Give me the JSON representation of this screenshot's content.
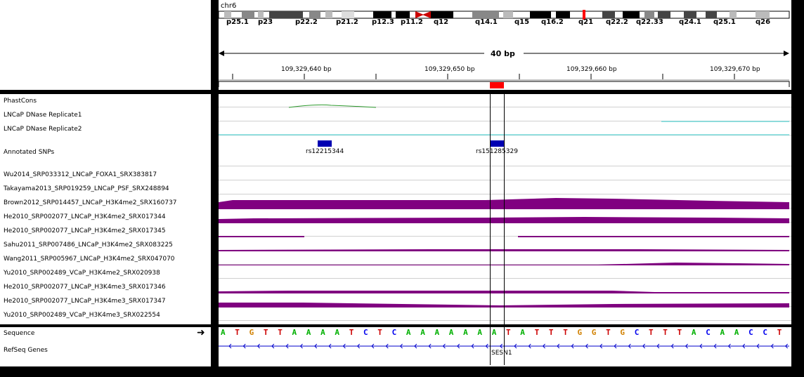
{
  "colors": {
    "sig": "#800080",
    "sigDark": "#7a0a7a",
    "snp": "#0000b2",
    "phastcons": "#2e9a2e",
    "dnase": "#33cccc",
    "roi": "#ff0000"
  },
  "ideogram": {
    "chromosome": "chr6",
    "bands": [
      "p25.1",
      "p23",
      "p22.2",
      "p21.2",
      "p12.3",
      "p11.2",
      "q12",
      "q14.1",
      "q15",
      "q16.2",
      "q21",
      "q22.2",
      "q22.33",
      "q24.1",
      "q25.1",
      "q26"
    ]
  },
  "ruler": {
    "span": "40 bp",
    "ticks": [
      "109,329,640 bp",
      "109,329,650 bp",
      "109,329,660 bp",
      "109,329,670 bp"
    ]
  },
  "tracks": [
    {
      "label": "PhastCons",
      "kind": "phastcons"
    },
    {
      "label": "LNCaP DNase Replicate1",
      "kind": "flat"
    },
    {
      "label": "LNCaP DNase Replicate2",
      "kind": "dnase"
    },
    {
      "label": "Annotated SNPs",
      "kind": "snp"
    },
    {
      "label": "Wu2014_SRP033312_LNCaP_FOXA1_SRX383817",
      "kind": "empty"
    },
    {
      "label": "Takayama2013_SRP019259_LNCaP_PSF_SRX248894",
      "kind": "empty"
    },
    {
      "label": "Brown2012_SRP014457_LNCaP_H3K4me2_SRX160737",
      "kind": "big"
    },
    {
      "label": "He2010_SRP002077_LNCaP_H3K4me2_SRX017344",
      "kind": "med"
    },
    {
      "label": "He2010_SRP002077_LNCaP_H3K4me2_SRX017345",
      "kind": "gap"
    },
    {
      "label": "Sahu2011_SRP007486_LNCaP_H3K4me2_SRX083225",
      "kind": "thin"
    },
    {
      "label": "Wang2011_SRP005967_LNCaP_H3K4me2_SRX047070",
      "kind": "thin2"
    },
    {
      "label": "Yu2010_SRP002489_VCaP_H3K4me2_SRX020938",
      "kind": "empty"
    },
    {
      "label": "He2010_SRP002077_LNCaP_H3K4me3_SRX017346",
      "kind": "thin3"
    },
    {
      "label": "He2010_SRP002077_LNCaP_H3K4me3_SRX017347",
      "kind": "med2"
    },
    {
      "label": "Yu2010_SRP002489_VCaP_H3K4me3_SRX022554",
      "kind": "empty"
    }
  ],
  "snps": [
    "rs12215344",
    "rs151285329"
  ],
  "sequence": {
    "label": "Sequence",
    "bases": [
      "A",
      "T",
      "G",
      "T",
      "T",
      "A",
      "A",
      "A",
      "A",
      "T",
      "C",
      "T",
      "C",
      "A",
      "A",
      "A",
      "A",
      "A",
      "A",
      "A",
      "T",
      "A",
      "T",
      "T",
      "T",
      "G",
      "G",
      "T",
      "G",
      "C",
      "T",
      "T",
      "T",
      "A",
      "C",
      "A",
      "A",
      "C",
      "C",
      "T"
    ]
  },
  "refseq": {
    "label": "RefSeq Genes",
    "gene": "SESN1"
  }
}
